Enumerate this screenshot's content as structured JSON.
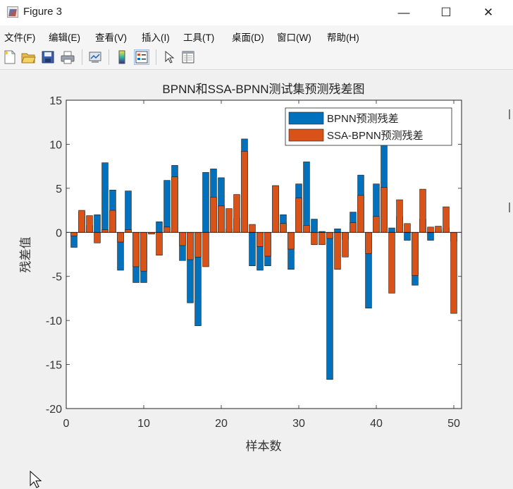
{
  "window": {
    "title": "Figure 3",
    "controls": {
      "minimize": "—",
      "maximize": "☐",
      "close": "✕"
    }
  },
  "menu": {
    "items": [
      "文件(F)",
      "编辑(E)",
      "查看(V)",
      "插入(I)",
      "工具(T)",
      "桌面(D)",
      "窗口(W)",
      "帮助(H)"
    ],
    "dock_arrow": "↘"
  },
  "toolbar": {
    "icons": [
      "new-figure-icon",
      "open-file-icon",
      "save-icon",
      "print-icon",
      "link-plot-icon",
      "colorbar-icon",
      "legend-icon",
      "pointer-icon",
      "property-inspector-icon"
    ]
  },
  "chart_data": {
    "type": "bar",
    "title": "BPNN和SSA-BPNN测试集预测残差图",
    "xlabel": "样本数",
    "ylabel": "残差值",
    "xlim": [
      0,
      51
    ],
    "ylim": [
      -20,
      15
    ],
    "xticks": [
      0,
      10,
      20,
      30,
      40,
      50
    ],
    "yticks": [
      -20,
      -15,
      -10,
      -5,
      0,
      5,
      10,
      15
    ],
    "legend_position": "top-right",
    "x": [
      1,
      2,
      3,
      4,
      5,
      6,
      7,
      8,
      9,
      10,
      11,
      12,
      13,
      14,
      15,
      16,
      17,
      18,
      19,
      20,
      21,
      22,
      23,
      24,
      25,
      26,
      27,
      28,
      29,
      30,
      31,
      32,
      33,
      34,
      35,
      36,
      37,
      38,
      39,
      40,
      41,
      42,
      43,
      44,
      45,
      46,
      47,
      48,
      49,
      50
    ],
    "series": [
      {
        "name": "BPNN预测残差",
        "color": "#0072BD",
        "values": [
          -1.7,
          2.3,
          0.8,
          2.0,
          7.9,
          4.8,
          -4.3,
          4.7,
          -5.7,
          -5.7,
          -0.1,
          1.2,
          5.9,
          7.6,
          -3.2,
          -8.0,
          -10.6,
          6.8,
          7.2,
          6.2,
          0.4,
          1.6,
          10.6,
          -3.8,
          -4.3,
          -3.8,
          5.3,
          2.0,
          -4.2,
          5.5,
          8.0,
          1.5,
          0.1,
          -16.7,
          0.4,
          -0.8,
          2.3,
          6.5,
          -8.6,
          5.5,
          10.9,
          0.5,
          1.8,
          -0.9,
          -6.0,
          1.5,
          -0.9,
          0.3,
          0.5,
          -1.0
        ]
      },
      {
        "name": "SSA-BPNN预测残差",
        "color": "#D95319",
        "values": [
          -0.4,
          2.5,
          1.9,
          -1.2,
          0.3,
          2.5,
          -1.1,
          0.3,
          -3.9,
          -4.4,
          -0.2,
          -2.6,
          0.6,
          6.3,
          -1.5,
          -3.1,
          -2.8,
          -3.9,
          4.0,
          3.0,
          2.7,
          4.3,
          9.2,
          0.9,
          -1.6,
          -2.7,
          5.3,
          1.0,
          -1.9,
          3.9,
          0.8,
          -1.4,
          -1.4,
          -0.7,
          -4.2,
          -2.8,
          1.1,
          4.2,
          -2.4,
          1.8,
          5.1,
          -6.9,
          3.7,
          1.0,
          -4.9,
          4.9,
          0.6,
          0.7,
          2.9,
          -9.2
        ]
      }
    ]
  }
}
